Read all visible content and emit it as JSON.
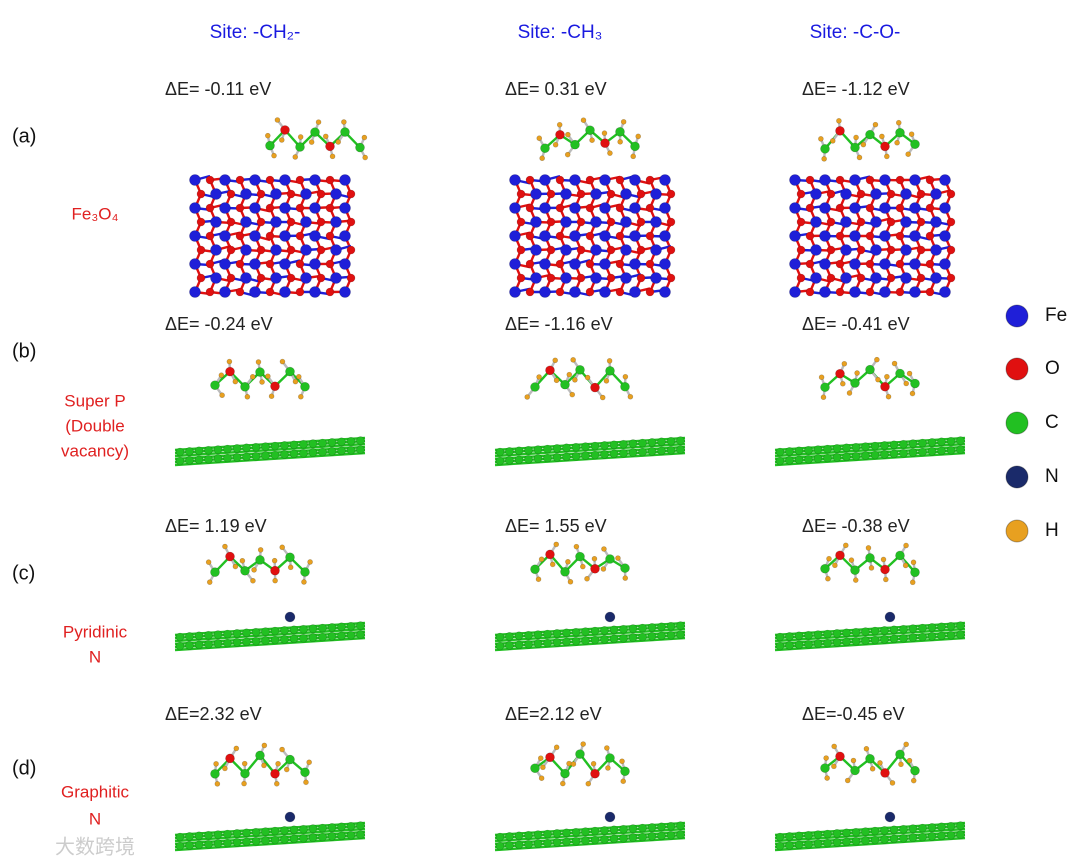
{
  "columns": [
    "Site: -CH₂-",
    "Site: -CH₃",
    "Site: -C-O-"
  ],
  "rows": [
    {
      "label": "(a)",
      "material": [
        "Fe₃O₄"
      ],
      "energies": [
        "ΔE= -0.11 eV",
        "ΔE= 0.31 eV",
        "ΔE= -1.12 eV"
      ]
    },
    {
      "label": "(b)",
      "material": [
        "Super P",
        "(Double",
        "vacancy)"
      ],
      "energies": [
        "ΔE= -0.24 eV",
        "ΔE= -1.16 eV",
        "ΔE= -0.41 eV"
      ]
    },
    {
      "label": "(c)",
      "material": [
        "Pyridinic",
        "N"
      ],
      "energies": [
        "ΔE= 1.19 eV",
        "ΔE= 1.55 eV",
        "ΔE= -0.38 eV"
      ]
    },
    {
      "label": "(d)",
      "material": [
        "Graphitic",
        "N"
      ],
      "energies": [
        "ΔE=2.32 eV",
        "ΔE=2.12 eV",
        "ΔE=-0.45 eV"
      ]
    }
  ],
  "legend": [
    {
      "label": "Fe",
      "color": "#1f1fd8"
    },
    {
      "label": "O",
      "color": "#e01010"
    },
    {
      "label": "C",
      "color": "#22c022"
    },
    {
      "label": "N",
      "color": "#1a2a6a"
    },
    {
      "label": "H",
      "color": "#e8a020"
    }
  ],
  "watermark": "大数跨境"
}
